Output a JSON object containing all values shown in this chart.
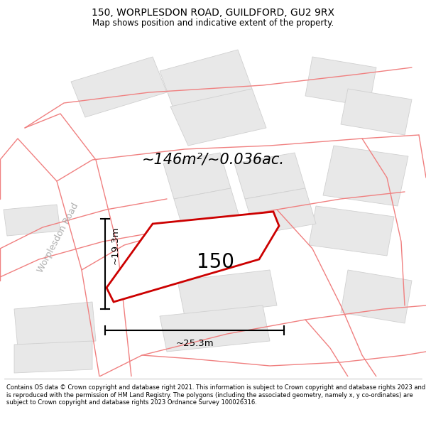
{
  "title_line1": "150, WORPLESDON ROAD, GUILDFORD, GU2 9RX",
  "title_line2": "Map shows position and indicative extent of the property.",
  "area_text": "~146m²/~0.036ac.",
  "property_label": "150",
  "dim_width": "~25.3m",
  "dim_height": "~19.3m",
  "road_label": "Worplesdon Road",
  "footer_text": "Contains OS data © Crown copyright and database right 2021. This information is subject to Crown copyright and database rights 2023 and is reproduced with the permission of HM Land Registry. The polygons (including the associated geometry, namely x, y co-ordinates) are subject to Crown copyright and database rights 2023 Ordnance Survey 100026316.",
  "property_color": "#cc0000",
  "road_line_color": "#f08080",
  "building_fill": "#e8e8e8",
  "building_edge": "#d0d0d0"
}
